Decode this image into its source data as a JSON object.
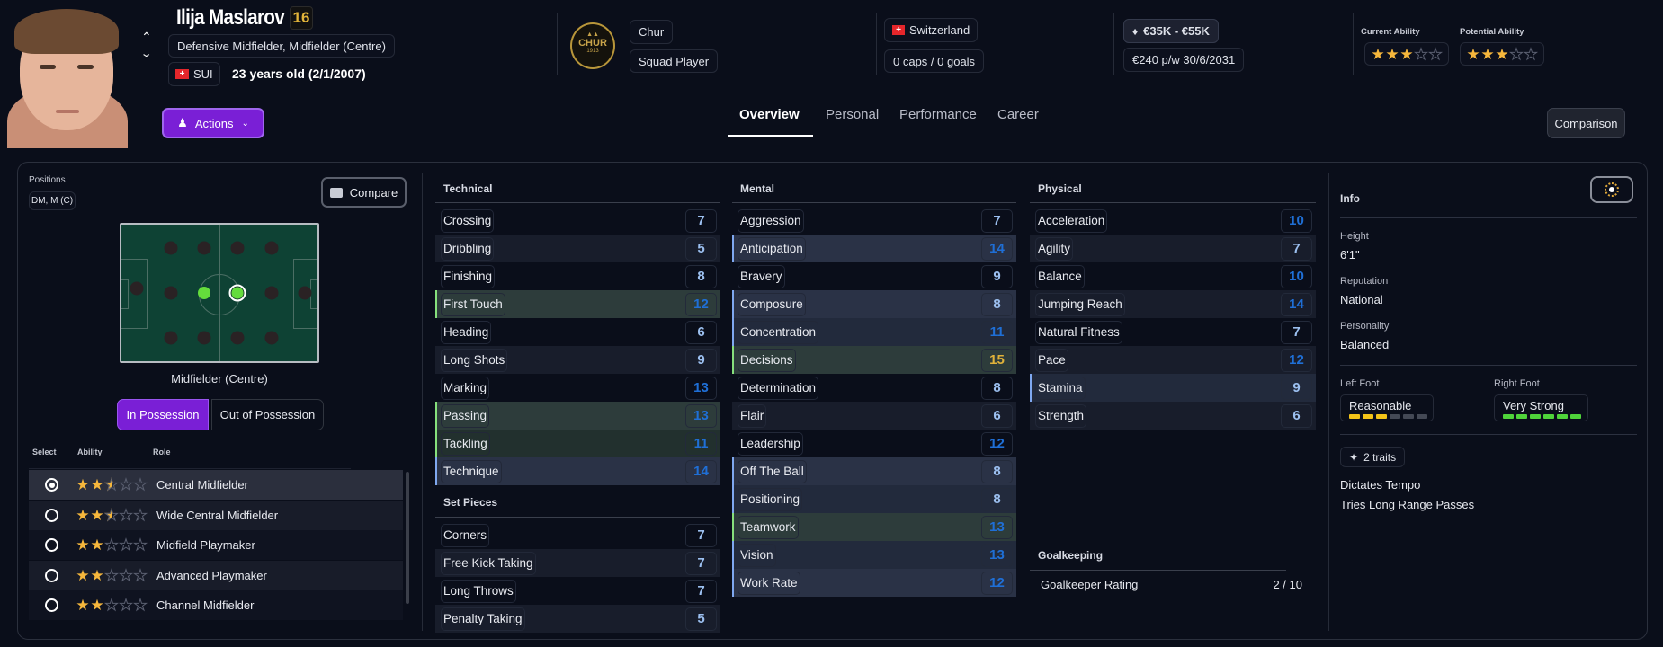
{
  "player": {
    "name": "Ilija Maslarov",
    "number": "16",
    "positions_text": "Defensive Midfielder, Midfielder (Centre)",
    "nationality_code": "SUI",
    "age_text": "23 years old (2/1/2007)"
  },
  "actions_label": "Actions",
  "club": {
    "logo_text": "CHUR",
    "logo_year": "1913",
    "name": "Chur",
    "status": "Squad Player"
  },
  "nation": {
    "name": "Switzerland",
    "caps": "0 caps / 0 goals"
  },
  "contract": {
    "value": "€35K - €55K",
    "wage": "€240 p/w",
    "expiry": "30/6/2031"
  },
  "ability": {
    "current_label": "Current Ability",
    "current_stars": 3,
    "potential_label": "Potential Ability",
    "potential_stars": 3
  },
  "tabs": [
    {
      "label": "Overview",
      "active": true
    },
    {
      "label": "Personal",
      "active": false
    },
    {
      "label": "Performance",
      "active": false
    },
    {
      "label": "Career",
      "active": false
    }
  ],
  "comparison_label": "Comparison",
  "positions": {
    "label": "Positions",
    "value": "DM, M (C)",
    "compare_label": "Compare",
    "selected_position": "Midfielder (Centre)",
    "natural_on_pitch": [
      "DM",
      "MC"
    ],
    "selected_on_pitch": "MC",
    "in_possession": "In Possession",
    "out_of_possession": "Out of Possession",
    "active_phase": "in_possession"
  },
  "roles": {
    "headers": {
      "select": "Select",
      "ability": "Ability",
      "role": "Role"
    },
    "items": [
      {
        "name": "Central Midfielder",
        "stars": 2.5,
        "selected": true
      },
      {
        "name": "Wide Central Midfielder",
        "stars": 2.5,
        "selected": false
      },
      {
        "name": "Midfield Playmaker",
        "stars": 2,
        "selected": false
      },
      {
        "name": "Advanced Playmaker",
        "stars": 2,
        "selected": false
      },
      {
        "name": "Channel Midfielder",
        "stars": 2,
        "selected": false
      }
    ]
  },
  "technical": {
    "title": "Technical",
    "items": [
      {
        "name": "Crossing",
        "value": 7,
        "highlight": null
      },
      {
        "name": "Dribbling",
        "value": 5,
        "highlight": null
      },
      {
        "name": "Finishing",
        "value": 8,
        "highlight": null
      },
      {
        "name": "First Touch",
        "value": 12,
        "highlight": "green"
      },
      {
        "name": "Heading",
        "value": 6,
        "highlight": null
      },
      {
        "name": "Long Shots",
        "value": 9,
        "highlight": null
      },
      {
        "name": "Marking",
        "value": 13,
        "highlight": null
      },
      {
        "name": "Passing",
        "value": 13,
        "highlight": "green"
      },
      {
        "name": "Tackling",
        "value": 11,
        "highlight": "green"
      },
      {
        "name": "Technique",
        "value": 14,
        "highlight": "blue"
      }
    ]
  },
  "set_pieces": {
    "title": "Set Pieces",
    "items": [
      {
        "name": "Corners",
        "value": 7,
        "highlight": null
      },
      {
        "name": "Free Kick Taking",
        "value": 7,
        "highlight": null
      },
      {
        "name": "Long Throws",
        "value": 7,
        "highlight": null
      },
      {
        "name": "Penalty Taking",
        "value": 5,
        "highlight": null
      }
    ]
  },
  "mental": {
    "title": "Mental",
    "items": [
      {
        "name": "Aggression",
        "value": 7,
        "highlight": null
      },
      {
        "name": "Anticipation",
        "value": 14,
        "highlight": "blue"
      },
      {
        "name": "Bravery",
        "value": 9,
        "highlight": null
      },
      {
        "name": "Composure",
        "value": 8,
        "highlight": "blue"
      },
      {
        "name": "Concentration",
        "value": 11,
        "highlight": "blue"
      },
      {
        "name": "Decisions",
        "value": 15,
        "highlight": "green"
      },
      {
        "name": "Determination",
        "value": 8,
        "highlight": null
      },
      {
        "name": "Flair",
        "value": 6,
        "highlight": null
      },
      {
        "name": "Leadership",
        "value": 12,
        "highlight": null
      },
      {
        "name": "Off The Ball",
        "value": 8,
        "highlight": "blue"
      },
      {
        "name": "Positioning",
        "value": 8,
        "highlight": "blue"
      },
      {
        "name": "Teamwork",
        "value": 13,
        "highlight": "green"
      },
      {
        "name": "Vision",
        "value": 13,
        "highlight": "blue"
      },
      {
        "name": "Work Rate",
        "value": 12,
        "highlight": "blue"
      }
    ]
  },
  "physical": {
    "title": "Physical",
    "items": [
      {
        "name": "Acceleration",
        "value": 10,
        "highlight": null
      },
      {
        "name": "Agility",
        "value": 7,
        "highlight": null
      },
      {
        "name": "Balance",
        "value": 10,
        "highlight": null
      },
      {
        "name": "Jumping Reach",
        "value": 14,
        "highlight": null
      },
      {
        "name": "Natural Fitness",
        "value": 7,
        "highlight": null
      },
      {
        "name": "Pace",
        "value": 12,
        "highlight": null
      },
      {
        "name": "Stamina",
        "value": 9,
        "highlight": "blue"
      },
      {
        "name": "Strength",
        "value": 6,
        "highlight": null
      }
    ]
  },
  "goalkeeping": {
    "title": "Goalkeeping",
    "rating_label": "Goalkeeper Rating",
    "rating_value": "2 / 10"
  },
  "info": {
    "title": "Info",
    "height_label": "Height",
    "height": "6'1\"",
    "reputation_label": "Reputation",
    "reputation": "National",
    "personality_label": "Personality",
    "personality": "Balanced",
    "left_foot": {
      "label": "Left Foot",
      "value": "Reasonable",
      "level": 3,
      "max": 6
    },
    "right_foot": {
      "label": "Right Foot",
      "value": "Very Strong",
      "level": 6,
      "max": 6
    },
    "traits_label": "2 traits",
    "traits": [
      "Dictates Tempo",
      "Tries Long Range Passes"
    ]
  },
  "colors": {
    "background": "#0a0e1a",
    "accent_purple": "#7a1fd6",
    "star": "#f6b73c",
    "value_low": "#9cc0f0",
    "value_mid": "#1f6fd6",
    "value_high": "#e0b23a",
    "key_attribute": "#86e07c",
    "preferred_attribute": "#7fa8f0",
    "left_foot_bar": "#f2c318",
    "right_foot_bar": "#4fd43a"
  }
}
